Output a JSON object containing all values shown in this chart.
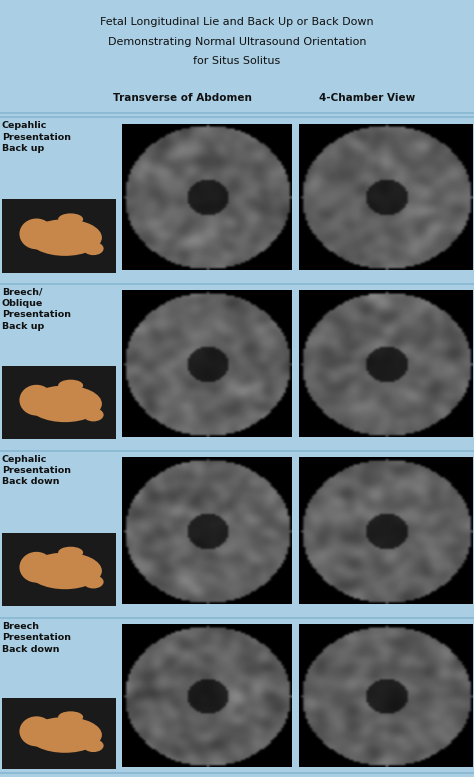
{
  "title_line1": "Fetal Longitudinal Lie and Back Up or Back Down",
  "title_line2": "Demonstrating Normal Ultrasound Orientation",
  "title_line3": "for Situs Solitus",
  "col_header1": "Transverse of Abdomen",
  "col_header2": "4-Chamber View",
  "background_color": "#aacfe4",
  "row_labels": [
    "Cepahlic\nPresentation\nBack up",
    "Breech/\nOblique\nPresentation\nBack up",
    "Cephalic\nPresentation\nBack down",
    "Breech\nPresentation\nBack down"
  ],
  "divider_color": "#88b8d0",
  "text_color": "#111111",
  "fig_width": 4.74,
  "fig_height": 7.77,
  "title_fontsize": 8.0,
  "header_fontsize": 7.5,
  "label_fontsize": 6.8
}
